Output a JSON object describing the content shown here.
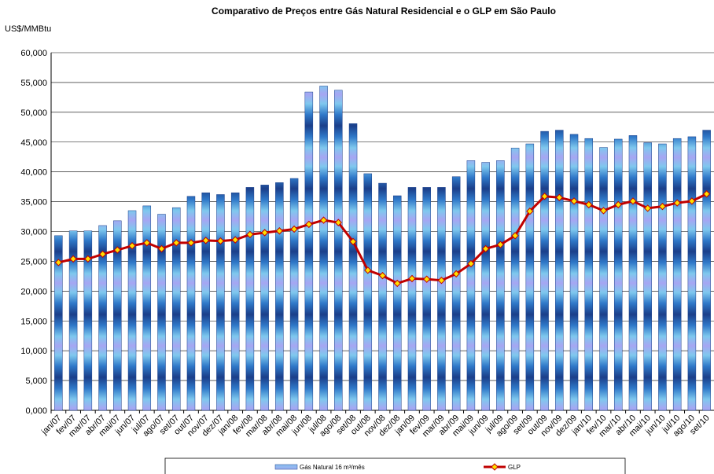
{
  "chart_data": {
    "type": "bar-line",
    "title": "Comparativo de Preços entre Gás Natural Residencial e o GLP em São Paulo",
    "y_label": "US$/MMBtu",
    "categories": [
      "jan/07",
      "fev/07",
      "mar/07",
      "abr/07",
      "mai/07",
      "jun/07",
      "jul/07",
      "ago/07",
      "set/07",
      "out/07",
      "nov/07",
      "dez/07",
      "jan/08",
      "fev/08",
      "mar/08",
      "abr/08",
      "mai/08",
      "jun/08",
      "jul/08",
      "ago/08",
      "set/08",
      "out/08",
      "nov/08",
      "dez/08",
      "jan/09",
      "fev/09",
      "mar/09",
      "abr/09",
      "mai/09",
      "jun/09",
      "jul/09",
      "ago/09",
      "set/09",
      "out/09",
      "nov/09",
      "dez/09",
      "jan/10",
      "fev/10",
      "mar/10",
      "abr/10",
      "mai/10",
      "jun/10",
      "jul/10",
      "ago/10",
      "set/10"
    ],
    "series": [
      {
        "name": "Gás Natural 16 m³/mês",
        "type": "bar",
        "color": "#2f78c8",
        "values": [
          29.3,
          30.1,
          30.1,
          31.0,
          31.8,
          33.5,
          34.3,
          32.9,
          34.0,
          35.9,
          36.5,
          36.2,
          36.5,
          37.4,
          37.8,
          38.2,
          38.9,
          53.4,
          54.4,
          53.7,
          48.1,
          39.7,
          38.1,
          36.0,
          37.4,
          37.4,
          37.4,
          39.2,
          41.9,
          41.6,
          41.9,
          44.0,
          44.7,
          46.8,
          47.0,
          46.3,
          45.6,
          44.1,
          45.5,
          46.1,
          44.9,
          44.7,
          45.6,
          45.9,
          47.0
        ]
      },
      {
        "name": "GLP",
        "type": "line",
        "color": "#c00000",
        "values": [
          24.8,
          25.4,
          25.4,
          26.2,
          26.9,
          27.6,
          28.1,
          27.1,
          28.1,
          28.1,
          28.5,
          28.4,
          28.6,
          29.5,
          29.8,
          30.1,
          30.4,
          31.2,
          31.9,
          31.5,
          28.3,
          23.5,
          22.6,
          21.3,
          22.1,
          22.0,
          21.8,
          22.9,
          24.6,
          27.1,
          27.8,
          29.3,
          33.4,
          35.9,
          35.7,
          35.1,
          34.5,
          33.5,
          34.5,
          35.1,
          33.9,
          34.2,
          34.8,
          35.1,
          36.3
        ]
      }
    ],
    "ylim": [
      0,
      60
    ],
    "yticks": [
      {
        "value": 0,
        "label": "0,000"
      },
      {
        "value": 5,
        "label": "5,000"
      },
      {
        "value": 10,
        "label": "10,000"
      },
      {
        "value": 15,
        "label": "15,000"
      },
      {
        "value": 20,
        "label": "20,000"
      },
      {
        "value": 25,
        "label": "25,000"
      },
      {
        "value": 30,
        "label": "30,000"
      },
      {
        "value": 35,
        "label": "35,000"
      },
      {
        "value": 40,
        "label": "40,000"
      },
      {
        "value": 45,
        "label": "45,000"
      },
      {
        "value": 50,
        "label": "50,000"
      },
      {
        "value": 55,
        "label": "55,000"
      },
      {
        "value": 60,
        "label": "60,000"
      }
    ],
    "grid": true,
    "legend": "bottom"
  }
}
